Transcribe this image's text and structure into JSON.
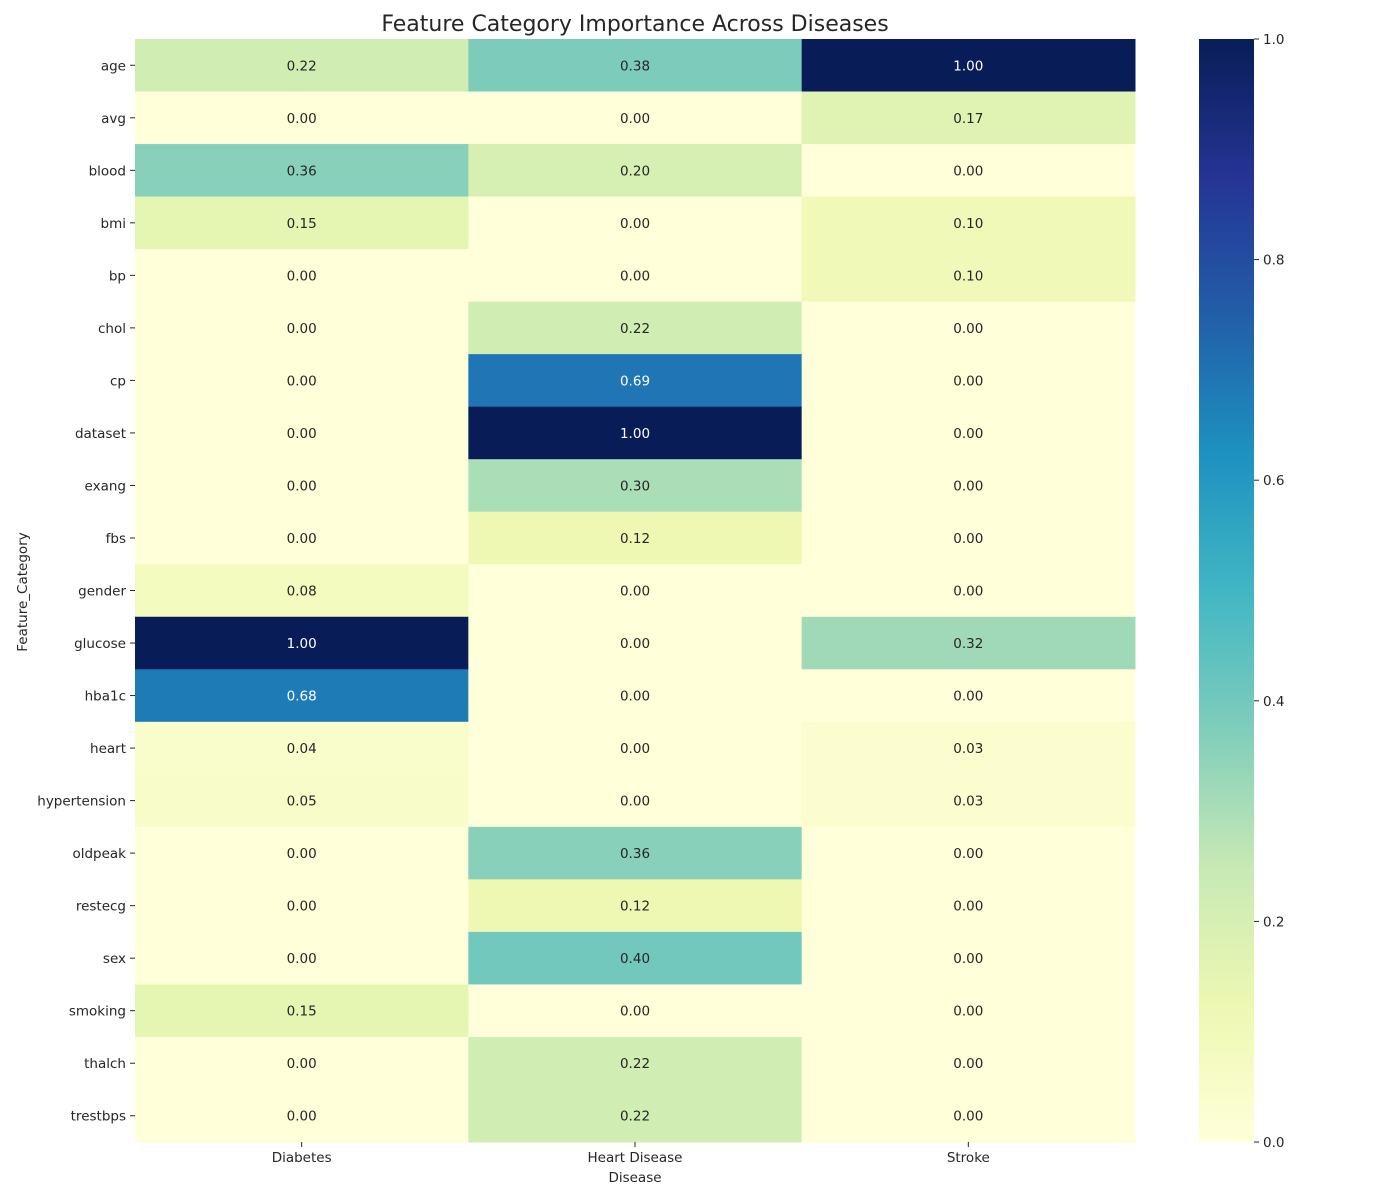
{
  "chart_data": {
    "type": "heatmap",
    "title": "Feature Category Importance Across Diseases",
    "xlabel": "Disease",
    "ylabel": "Feature_Category",
    "columns": [
      "Diabetes",
      "Heart Disease",
      "Stroke"
    ],
    "rows": [
      "age",
      "avg",
      "blood",
      "bmi",
      "bp",
      "chol",
      "cp",
      "dataset",
      "exang",
      "fbs",
      "gender",
      "glucose",
      "hba1c",
      "heart",
      "hypertension",
      "oldpeak",
      "restecg",
      "sex",
      "smoking",
      "thalch",
      "trestbps"
    ],
    "values": [
      [
        0.22,
        0.38,
        1.0
      ],
      [
        0.0,
        0.0,
        0.17
      ],
      [
        0.36,
        0.2,
        0.0
      ],
      [
        0.15,
        0.0,
        0.1
      ],
      [
        0.0,
        0.0,
        0.1
      ],
      [
        0.0,
        0.22,
        0.0
      ],
      [
        0.0,
        0.69,
        0.0
      ],
      [
        0.0,
        1.0,
        0.0
      ],
      [
        0.0,
        0.3,
        0.0
      ],
      [
        0.0,
        0.12,
        0.0
      ],
      [
        0.08,
        0.0,
        0.0
      ],
      [
        1.0,
        0.0,
        0.32
      ],
      [
        0.68,
        0.0,
        0.0
      ],
      [
        0.04,
        0.0,
        0.03
      ],
      [
        0.05,
        0.0,
        0.03
      ],
      [
        0.0,
        0.36,
        0.0
      ],
      [
        0.0,
        0.12,
        0.0
      ],
      [
        0.0,
        0.4,
        0.0
      ],
      [
        0.15,
        0.0,
        0.0
      ],
      [
        0.0,
        0.22,
        0.0
      ],
      [
        0.0,
        0.22,
        0.0
      ]
    ],
    "value_format": "0.00",
    "colormap": "YlGnBu",
    "vmin": 0.0,
    "vmax": 1.0,
    "colorbar_ticks": [
      0.0,
      0.2,
      0.4,
      0.6,
      0.8,
      1.0
    ],
    "colorbar_tick_labels": [
      "0.0",
      "0.2",
      "0.4",
      "0.6",
      "0.8",
      "1.0"
    ],
    "colormap_stops": [
      "#ffffd9",
      "#edf8b1",
      "#c7e9b4",
      "#7fcdbb",
      "#41b6c4",
      "#1d91c0",
      "#225ea8",
      "#253494",
      "#081d58"
    ],
    "annotation_dark_text": "#262626",
    "annotation_light_text": "#ffffff"
  }
}
